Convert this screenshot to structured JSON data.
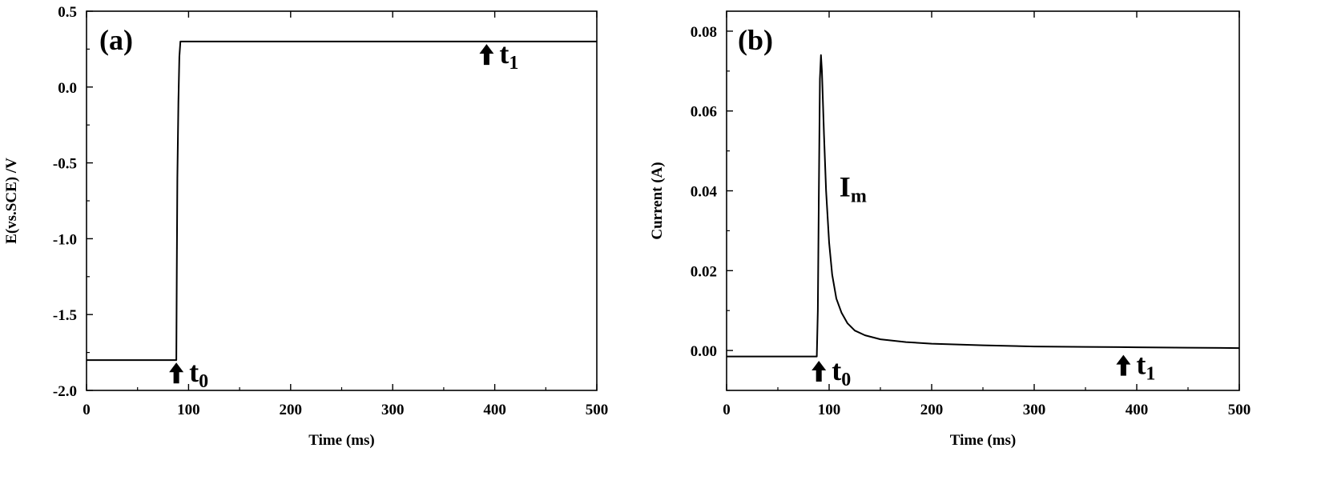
{
  "chart_data": [
    {
      "type": "line",
      "panel_label": "(a)",
      "xlabel": "Time (ms)",
      "ylabel": "E(vs.SCE) /V",
      "xlim": [
        0,
        500
      ],
      "ylim": [
        -2.0,
        0.5
      ],
      "xticks": [
        0,
        100,
        200,
        300,
        400,
        500
      ],
      "xtick_labels": [
        "0",
        "100",
        "200",
        "300",
        "400",
        "500"
      ],
      "yticks": [
        -2.0,
        -1.5,
        -1.0,
        -0.5,
        0.0,
        0.5
      ],
      "ytick_labels": [
        "-2.0",
        "-1.5",
        "-1.0",
        "-0.5",
        "0.0",
        "0.5"
      ],
      "grid": false,
      "series": [
        {
          "x": [
            0,
            88,
            88.5,
            89,
            90,
            91,
            92,
            500
          ],
          "y": [
            -1.8,
            -1.8,
            -1.2,
            -0.6,
            -0.1,
            0.2,
            0.3,
            0.3
          ]
        }
      ],
      "annotations": [
        {
          "symbol": "arrow-up",
          "base": "t",
          "sub": "0",
          "x": 88,
          "y": -1.88
        },
        {
          "symbol": "arrow-up",
          "base": "t",
          "sub": "1",
          "x": 392,
          "y": 0.22
        }
      ]
    },
    {
      "type": "line",
      "panel_label": "(b)",
      "xlabel": "Time (ms)",
      "ylabel": "Current (A)",
      "xlim": [
        0,
        500
      ],
      "ylim": [
        -0.01,
        0.085
      ],
      "xticks": [
        0,
        100,
        200,
        300,
        400,
        500
      ],
      "xtick_labels": [
        "0",
        "100",
        "200",
        "300",
        "400",
        "500"
      ],
      "yticks": [
        0.0,
        0.02,
        0.04,
        0.06,
        0.08
      ],
      "ytick_labels": [
        "0.00",
        "0.02",
        "0.04",
        "0.06",
        "0.08"
      ],
      "grid": false,
      "series": [
        {
          "x": [
            0,
            88,
            89,
            90,
            91,
            92,
            93,
            95,
            97,
            100,
            103,
            107,
            112,
            118,
            125,
            135,
            150,
            175,
            200,
            250,
            300,
            350,
            400,
            450,
            500
          ],
          "y": [
            -0.0015,
            -0.0015,
            0.01,
            0.04,
            0.068,
            0.074,
            0.07,
            0.054,
            0.04,
            0.027,
            0.019,
            0.013,
            0.0095,
            0.0068,
            0.005,
            0.0038,
            0.0028,
            0.0021,
            0.0017,
            0.0013,
            0.001,
            0.0009,
            0.0008,
            0.0007,
            0.0006
          ]
        }
      ],
      "annotations": [
        {
          "symbol": "",
          "base": "I",
          "sub": "m",
          "x": 110,
          "y": 0.041
        },
        {
          "symbol": "arrow-up",
          "base": "t",
          "sub": "0",
          "x": 90,
          "y": -0.005
        },
        {
          "symbol": "arrow-up",
          "base": "t",
          "sub": "1",
          "x": 387,
          "y": -0.0035
        }
      ]
    }
  ]
}
